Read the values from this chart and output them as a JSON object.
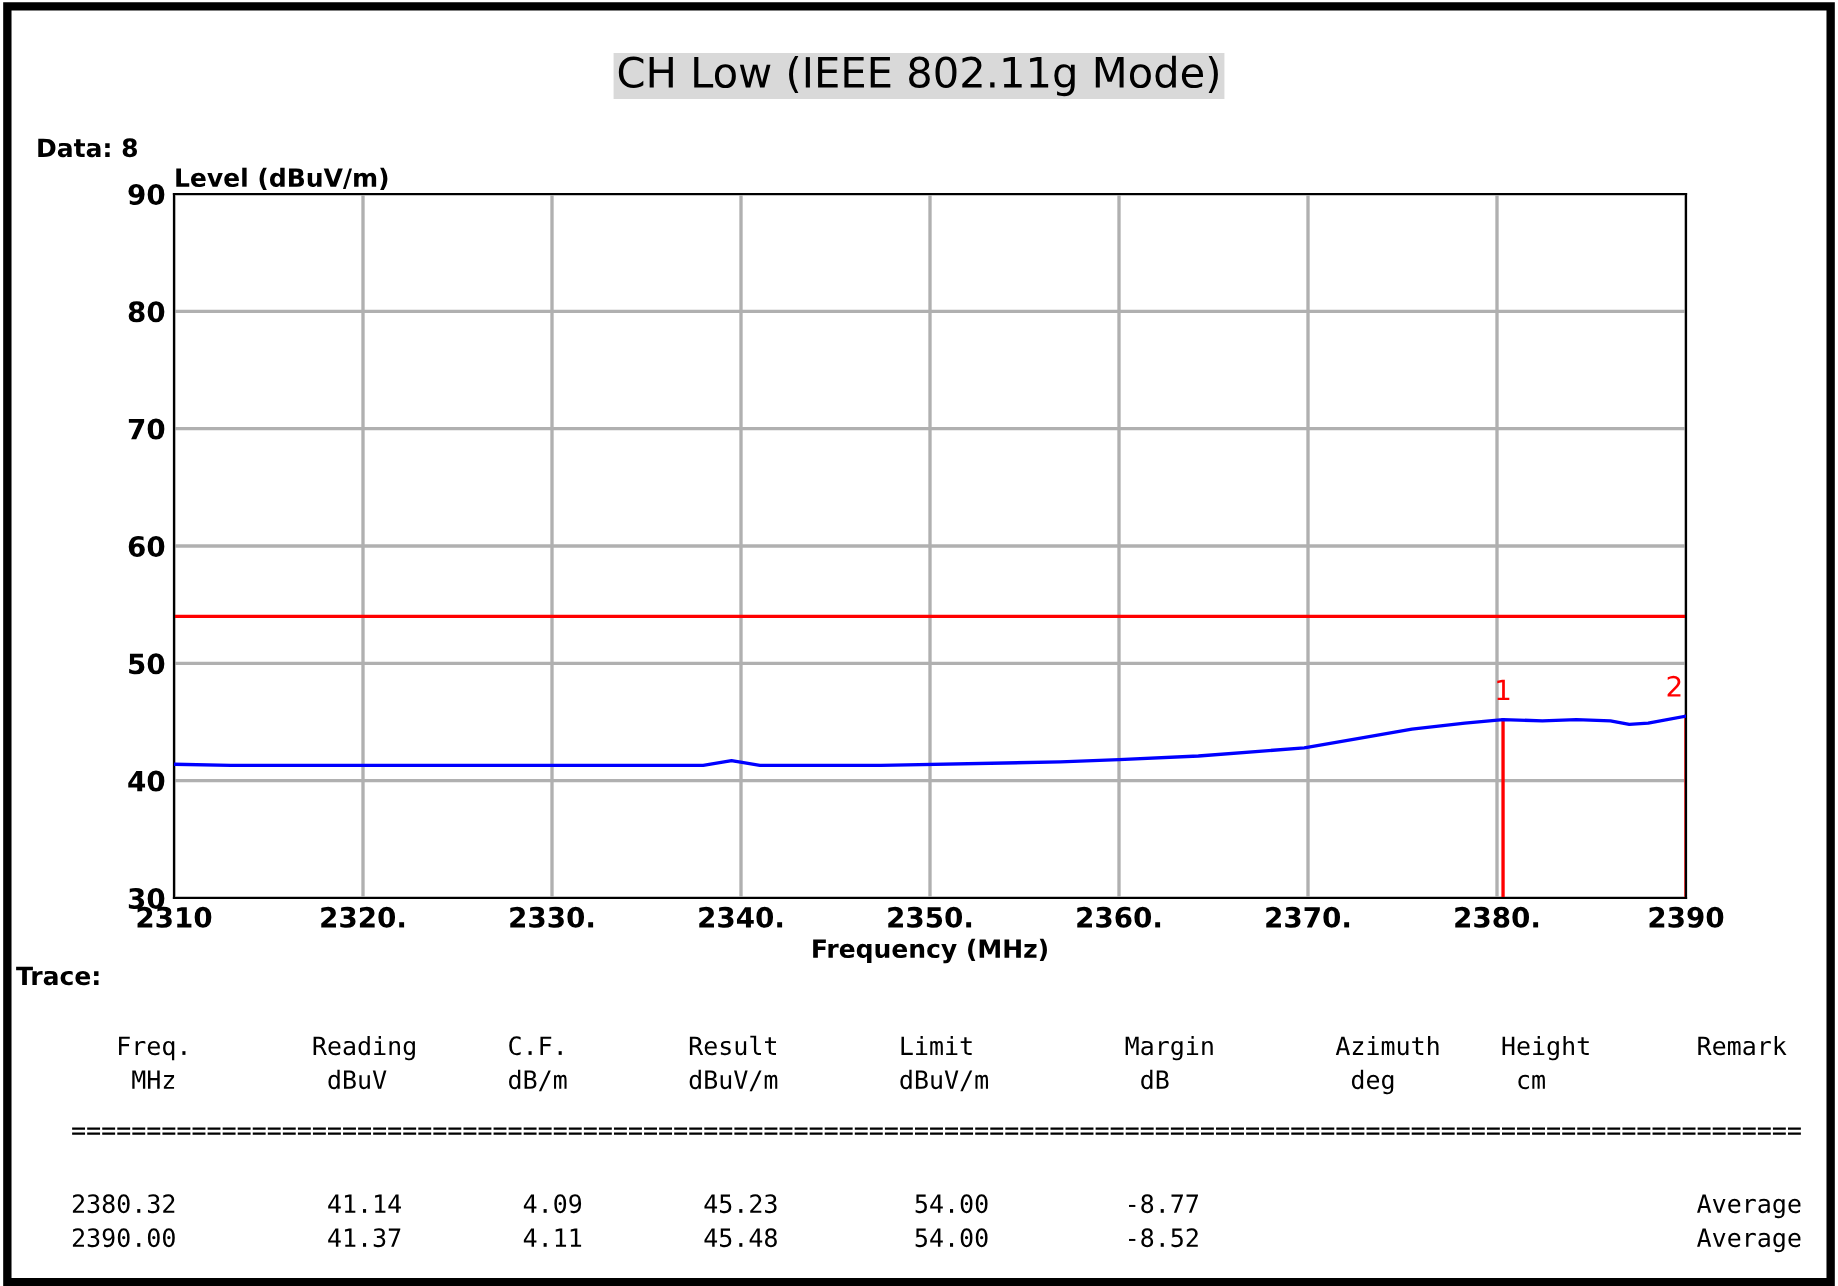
{
  "chart_data": {
    "type": "line",
    "title": "CH Low (IEEE 802.11g Mode)",
    "xlabel": "Frequency (MHz)",
    "ylabel": "Level (dBuV/m)",
    "series": [
      {
        "color": "#0000ff",
        "x": [
          2310,
          2313,
          2338,
          2339.5,
          2341,
          2347.4,
          2356.9,
          2360,
          2364.2,
          2369.8,
          2372.7,
          2375.5,
          2378.3,
          2380.32,
          2382.4,
          2384.2,
          2386,
          2387,
          2388,
          2390
        ],
        "values": [
          41.4,
          41.3,
          41.3,
          41.7,
          41.3,
          41.3,
          41.6,
          41.8,
          42.1,
          42.8,
          43.6,
          44.4,
          44.9,
          45.2,
          45.1,
          45.2,
          45.1,
          44.8,
          44.9,
          45.5
        ]
      }
    ],
    "ref_lines": [
      {
        "axis": "y",
        "value": 54,
        "color": "#ff0000"
      },
      {
        "axis": "x",
        "value": 2380.32,
        "color": "#ff0000"
      },
      {
        "axis": "x",
        "value": 2390,
        "color": "#ff0000"
      }
    ],
    "xlim": [
      2310,
      2390
    ],
    "ylim": [
      30,
      90
    ],
    "xticks": [
      2310,
      {
        "value": 2320,
        "label": "2320."
      },
      {
        "value": 2330,
        "label": "2330."
      },
      {
        "value": 2340,
        "label": "2340."
      },
      {
        "value": 2350,
        "label": "2350."
      },
      {
        "value": 2360,
        "label": "2360."
      },
      {
        "value": 2370,
        "label": "2370."
      },
      {
        "value": 2380,
        "label": "2380."
      },
      2390
    ],
    "yticks": [
      30,
      40,
      50,
      60,
      70,
      80,
      90
    ],
    "grid": true,
    "line_style": "solid",
    "marker": "none",
    "annotations": [
      {
        "text": "1",
        "x": 2380.32,
        "y": 45.2
      },
      {
        "text": "2",
        "x": 2390,
        "y": 45.5
      },
      "Data: 8",
      "Trace:",
      "    Freq.        Reading      C.F.        Result        Limit          Margin        Azimuth    Height       Remark",
      "     MHz          dBuV        dB/m        dBuV/m        dBuV/m          dB            deg        cm",
      " ===================================================================================================================",
      " 2380.32          41.14        4.09        45.23         54.00         -8.77                                 Average",
      " 2390.00          41.37        4.11        45.48         54.00         -8.52                                 Average"
    ]
  }
}
